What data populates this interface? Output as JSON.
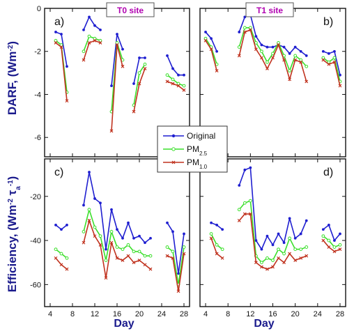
{
  "figure": {
    "ylabel_top": "DARF, (Wm",
    "ylabel_top_sup": "-2",
    "ylabel_top_end": ")",
    "ylabel_bottom": "Efficiency, (Wm",
    "ylabel_bottom_sup": "-2",
    "ylabel_bottom_tau": " τ",
    "ylabel_bottom_sub": "a",
    "ylabel_bottom_sup2": "-1",
    "ylabel_bottom_end": ")",
    "xlabel": "Day",
    "site_left": "T0 site",
    "site_right": "T1 site",
    "panel_labels": [
      "a)",
      "b)",
      "c)",
      "d)"
    ]
  },
  "legend": {
    "entries": [
      {
        "label": "Original",
        "sub": "",
        "color": "#1f1fd0"
      },
      {
        "label": "PM",
        "sub": "2.5",
        "color": "#3adf2a"
      },
      {
        "label": "PM",
        "sub": "1.0",
        "color": "#c0321e"
      }
    ]
  },
  "axes": {
    "x_ticks": [
      "4",
      "8",
      "12",
      "16",
      "20",
      "24",
      "28"
    ],
    "x_range": [
      3,
      29
    ],
    "top_y_ticks": [
      "0",
      "-2",
      "-4",
      "-6"
    ],
    "top_y_range": [
      -6.9,
      0
    ],
    "bottom_y_ticks": [
      "-20",
      "-40",
      "-60"
    ],
    "bottom_y_range": [
      -70,
      -3
    ]
  },
  "chart_data": [
    {
      "type": "line",
      "panel": "a)",
      "x": [
        5,
        6,
        7,
        10,
        11,
        12,
        13,
        15,
        16,
        17,
        19,
        20,
        21,
        22,
        25,
        26,
        27,
        28
      ],
      "series": [
        {
          "name": "Original",
          "values": [
            -1.1,
            -1.2,
            -2.7,
            -1.0,
            -0.4,
            -0.8,
            -1.0,
            -3.6,
            -1.2,
            -1.9,
            -3.5,
            -2.3,
            -2.3,
            null,
            -2.2,
            -2.8,
            -3.1,
            -3.1
          ]
        },
        {
          "name": "PM2.5",
          "values": [
            -1.5,
            -1.7,
            -3.9,
            -2.0,
            -1.3,
            -1.4,
            -1.5,
            -4.8,
            -1.6,
            -2.4,
            -4.5,
            -3.0,
            -2.6,
            null,
            -3.1,
            -3.3,
            -3.5,
            -3.6
          ]
        },
        {
          "name": "PM1.0",
          "values": [
            -1.6,
            -1.8,
            -4.3,
            -2.4,
            -1.6,
            -1.5,
            -1.6,
            -5.7,
            -1.7,
            -2.7,
            -4.8,
            -3.5,
            -2.8,
            null,
            -3.4,
            -3.5,
            -3.6,
            -3.8
          ]
        }
      ],
      "ylim": [
        -6.9,
        0
      ],
      "xlim": [
        3,
        29
      ]
    },
    {
      "type": "line",
      "panel": "b)",
      "x": [
        4,
        5,
        6,
        10,
        11,
        12,
        13,
        14,
        15,
        16,
        17,
        18,
        19,
        20,
        21,
        22,
        25,
        26,
        27,
        28
      ],
      "series": [
        {
          "name": "Original",
          "values": [
            -1.1,
            -1.4,
            -2.0,
            -1.1,
            -0.4,
            -0.3,
            -1.3,
            -1.7,
            -1.8,
            -1.8,
            -1.7,
            -1.8,
            -2.1,
            -1.8,
            -2.0,
            -2.2,
            -2.0,
            -2.1,
            -2.0,
            -3.1
          ]
        },
        {
          "name": "PM2.5",
          "values": [
            -1.4,
            -1.8,
            -2.6,
            -1.8,
            -0.9,
            -0.9,
            -1.6,
            -2.0,
            -2.5,
            -2.1,
            -1.6,
            -2.2,
            -2.9,
            -2.2,
            -2.4,
            -2.7,
            -2.3,
            -2.5,
            -2.3,
            -3.4
          ]
        },
        {
          "name": "PM1.0",
          "values": [
            -1.5,
            -1.9,
            -2.9,
            -2.2,
            -1.1,
            -1.0,
            -1.9,
            -2.3,
            -2.8,
            -2.3,
            -1.7,
            -2.4,
            -3.3,
            -2.4,
            -2.5,
            -3.4,
            -2.4,
            -2.6,
            -2.5,
            -3.6
          ]
        }
      ],
      "ylim": [
        -6.9,
        0
      ],
      "xlim": [
        3,
        29
      ]
    },
    {
      "type": "line",
      "panel": "c)",
      "x": [
        5,
        6,
        7,
        10,
        11,
        12,
        13,
        14,
        15,
        16,
        17,
        18,
        19,
        20,
        21,
        22,
        25,
        26,
        27,
        28
      ],
      "series": [
        {
          "name": "Original",
          "values": [
            -33,
            -35,
            -33,
            -24,
            -9,
            -21,
            -23,
            -44,
            -26,
            -35,
            -39,
            -32,
            -39,
            -38,
            -41,
            -39,
            -32,
            -36,
            -55,
            -37
          ]
        },
        {
          "name": "PM2.5",
          "values": [
            -44,
            -46,
            -48,
            -36,
            -26,
            -34,
            -38,
            -49,
            -36,
            -43,
            -44,
            -42,
            -45,
            -45,
            -47,
            -47,
            -43,
            -45,
            -60,
            -43
          ]
        },
        {
          "name": "PM1.0",
          "values": [
            -48,
            -51,
            -53,
            -41,
            -31,
            -38,
            -42,
            -57,
            -41,
            -48,
            -49,
            -47,
            -50,
            -49,
            -51,
            -53,
            -47,
            -48,
            -63,
            -46
          ]
        }
      ],
      "ylim": [
        -70,
        -3
      ],
      "xlim": [
        3,
        29
      ]
    },
    {
      "type": "line",
      "panel": "d)",
      "x": [
        5,
        6,
        7,
        10,
        11,
        12,
        13,
        14,
        15,
        16,
        17,
        18,
        19,
        20,
        21,
        22,
        25,
        26,
        27,
        28
      ],
      "series": [
        {
          "name": "Original",
          "values": [
            -32,
            -33,
            -35,
            -15,
            -8,
            -7,
            -40,
            -44,
            -38,
            -42,
            -37,
            -41,
            -30,
            -39,
            -37,
            -31,
            -35,
            -33,
            -40,
            -37
          ]
        },
        {
          "name": "PM2.5",
          "values": [
            -37,
            -42,
            -44,
            -26,
            -23,
            -22,
            -47,
            -50,
            -48,
            -49,
            -44,
            -46,
            -39,
            -44,
            -44,
            -43,
            -38,
            -40,
            -43,
            -42
          ]
        },
        {
          "name": "PM1.0",
          "values": [
            -39,
            -46,
            -48,
            -31,
            -28,
            -28,
            -50,
            -52,
            -53,
            -52,
            -48,
            -50,
            -46,
            -49,
            -48,
            -47,
            -40,
            -43,
            -45,
            -44
          ]
        }
      ],
      "ylim": [
        -70,
        -3
      ],
      "xlim": [
        3,
        29
      ]
    }
  ]
}
